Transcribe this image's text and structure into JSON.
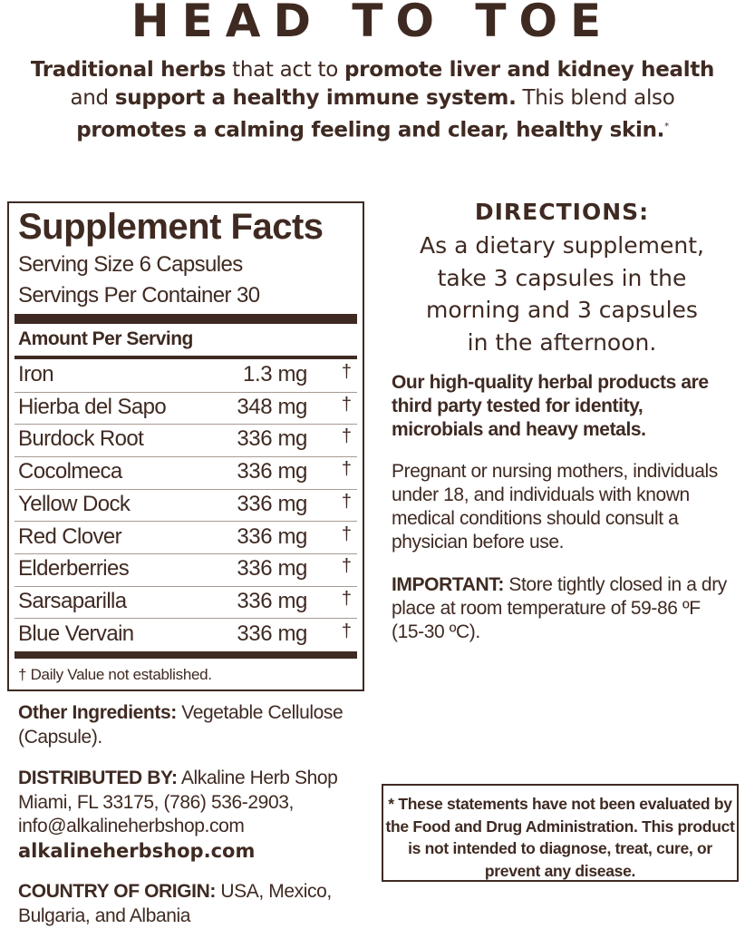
{
  "title": "HEAD TO TOE",
  "intro": {
    "p1": "Traditional herbs",
    "p2": " that act to ",
    "p3": "promote liver and kidney health",
    "p4": " and ",
    "p5": "support a healthy immune system.",
    "p6": " This blend also ",
    "p7": "promotes a calming feeling and clear, healthy skin.",
    "p8": "*"
  },
  "facts": {
    "heading": "Supplement Facts",
    "serving_size": "Serving Size 6 Capsules",
    "servings_per_container": "Servings Per Container 30",
    "amount_header": "Amount Per Serving",
    "rows": [
      {
        "name": "Iron",
        "amount": "1.3 mg",
        "dv": "†"
      },
      {
        "name": "Hierba del Sapo",
        "amount": "348 mg",
        "dv": "†"
      },
      {
        "name": "Burdock Root",
        "amount": "336 mg",
        "dv": "†"
      },
      {
        "name": "Cocolmeca",
        "amount": "336 mg",
        "dv": "†"
      },
      {
        "name": "Yellow Dock",
        "amount": "336 mg",
        "dv": "†"
      },
      {
        "name": "Red Clover",
        "amount": "336 mg",
        "dv": "†"
      },
      {
        "name": "Elderberries",
        "amount": "336 mg",
        "dv": "†"
      },
      {
        "name": "Sarsaparilla",
        "amount": "336 mg",
        "dv": "†"
      },
      {
        "name": "Blue Vervain",
        "amount": "336 mg",
        "dv": "†"
      }
    ],
    "footnote": "† Daily Value not established."
  },
  "other_ingredients": {
    "label": "Other Ingredients:",
    "text": " Vegetable Cellulose (Capsule)."
  },
  "distributed": {
    "label": "DISTRIBUTED BY:",
    "name": " Alkaline Herb Shop",
    "address": "Miami, FL 33175, (786) 536-2903,",
    "email": "info@alkalineherbshop.com",
    "website": "alkalineherbshop.com"
  },
  "origin": {
    "label": "COUNTRY OF ORIGIN:",
    "text": " USA, Mexico, Bulgaria, and Albania"
  },
  "directions": {
    "heading": "DIRECTIONS:",
    "lines": [
      "As a dietary supplement,",
      "take 3 capsules in the",
      "morning and 3 capsules",
      "in the afternoon."
    ]
  },
  "quality": "Our high-quality herbal products are third party tested for identity, microbials and heavy metals.",
  "warning": "Pregnant or nursing mothers, individuals under 18, and individuals with known medical conditions should consult a physician before use.",
  "important": {
    "label": "IMPORTANT:",
    "text": " Store tightly closed in a dry place at room temperature of 59-86 ºF (15-30 ºC)."
  },
  "disclaimer": "* These statements have not been evaluated by the Food and Drug Administration. This product is not intended to diagnose, treat, cure, or prevent any disease.",
  "colors": {
    "text": "#3f2a22",
    "background": "#ffffff"
  }
}
